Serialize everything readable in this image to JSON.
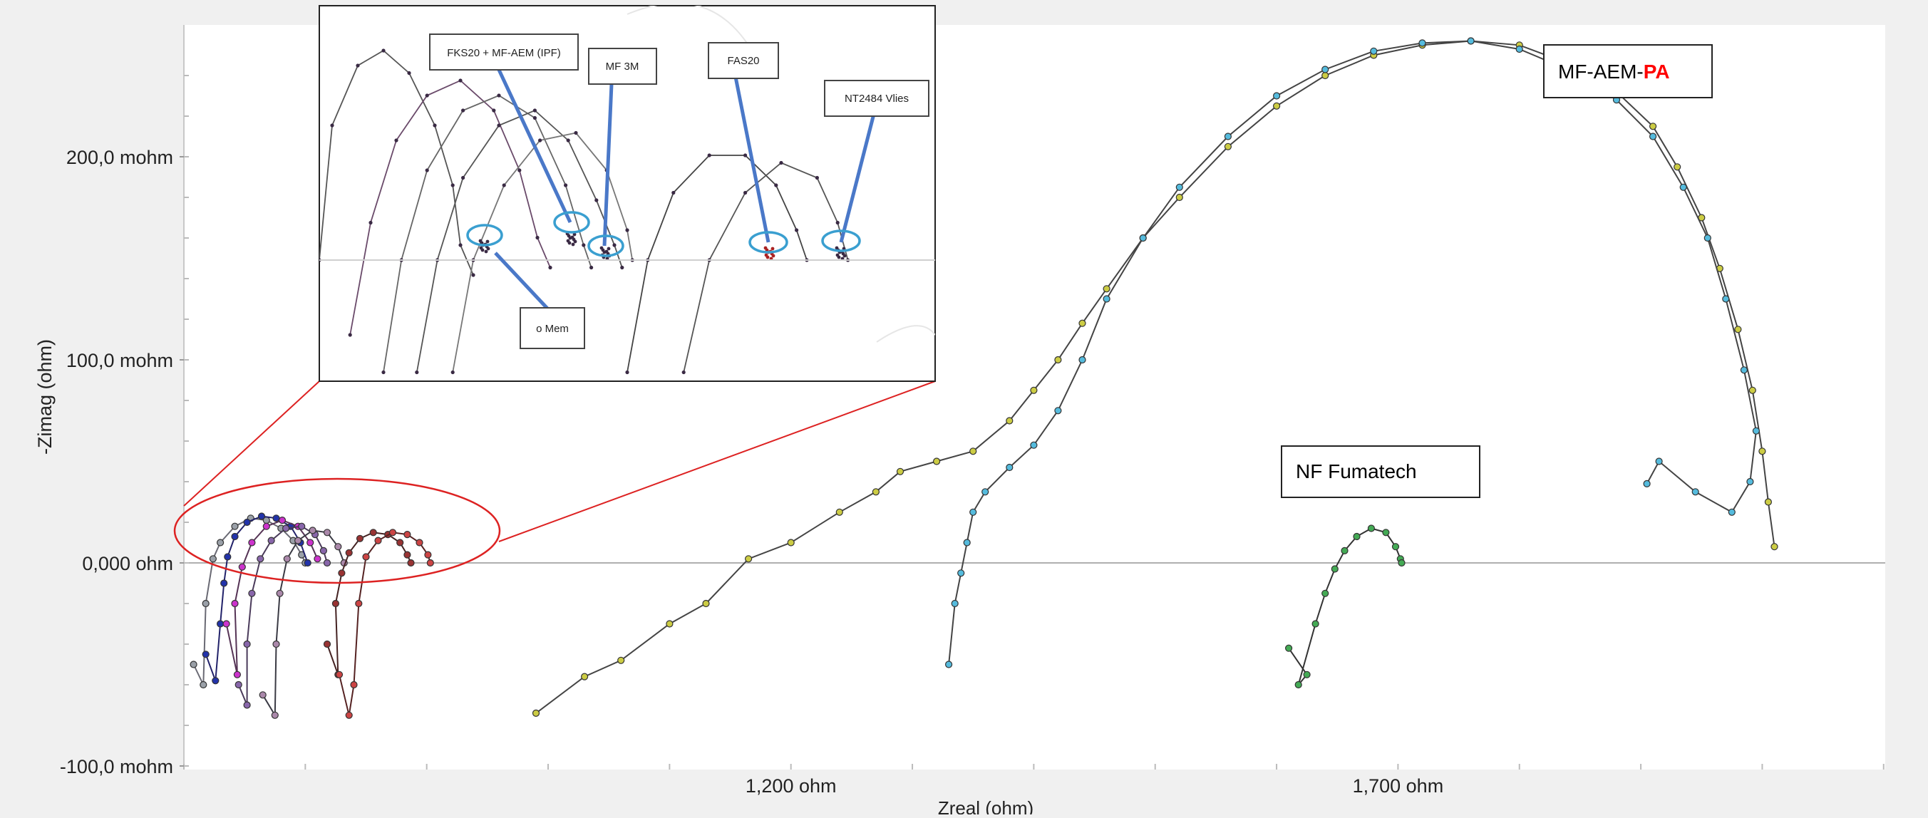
{
  "chart_data": {
    "type": "scatter",
    "xlabel": "Zreal (ohm)",
    "ylabel": "-Zimag (ohm)",
    "xlim": [
      700,
      2100
    ],
    "ylim": [
      -0.1,
      0.26
    ],
    "x_ticks": [
      {
        "v": 1200,
        "label": "1,200 ohm"
      },
      {
        "v": 1700,
        "label": "1,700 ohm"
      }
    ],
    "y_ticks": [
      {
        "v": 0.2,
        "label": "200,0 mohm"
      },
      {
        "v": 0.1,
        "label": "100,0 mohm"
      },
      {
        "v": 0.0,
        "label": "0,000 ohm"
      },
      {
        "v": -0.1,
        "label": "-100,0 mohm"
      }
    ],
    "annotations": [
      {
        "text_parts": [
          {
            "text": "MF-AEM-",
            "color": "#000000",
            "bold": false
          },
          {
            "text": "PA",
            "color": "#ff0000",
            "bold": true
          }
        ]
      },
      {
        "text_parts": [
          {
            "text": "NF Fumatech",
            "color": "#000000",
            "bold": false
          }
        ]
      }
    ],
    "series": [
      {
        "color": "#9aa0a8",
        "line": "#6a6a74",
        "points": [
          [
            708,
            -0.05
          ],
          [
            716,
            -0.06
          ],
          [
            718,
            -0.02
          ],
          [
            724,
            0.002
          ],
          [
            730,
            0.01
          ],
          [
            742,
            0.018
          ],
          [
            755,
            0.022
          ],
          [
            768,
            0.021
          ],
          [
            780,
            0.017
          ],
          [
            790,
            0.011
          ],
          [
            797,
            0.004
          ],
          [
            800,
            0.0
          ]
        ]
      },
      {
        "color": "#2233aa",
        "line": "#22226a",
        "points": [
          [
            718,
            -0.045
          ],
          [
            726,
            -0.058
          ],
          [
            730,
            -0.03
          ],
          [
            733,
            -0.01
          ],
          [
            736,
            0.003
          ],
          [
            742,
            0.013
          ],
          [
            752,
            0.02
          ],
          [
            764,
            0.023
          ],
          [
            776,
            0.022
          ],
          [
            788,
            0.018
          ],
          [
            796,
            0.01
          ],
          [
            802,
            0.0
          ]
        ]
      },
      {
        "color": "#cc33cc",
        "line": "#553355",
        "points": [
          [
            735,
            -0.03
          ],
          [
            744,
            -0.055
          ],
          [
            742,
            -0.02
          ],
          [
            748,
            -0.002
          ],
          [
            756,
            0.01
          ],
          [
            768,
            0.018
          ],
          [
            781,
            0.021
          ],
          [
            794,
            0.018
          ],
          [
            804,
            0.01
          ],
          [
            810,
            0.002
          ]
        ]
      },
      {
        "color": "#8866aa",
        "line": "#4a3a5a",
        "points": [
          [
            745,
            -0.06
          ],
          [
            752,
            -0.07
          ],
          [
            752,
            -0.04
          ],
          [
            756,
            -0.015
          ],
          [
            763,
            0.002
          ],
          [
            772,
            0.011
          ],
          [
            784,
            0.017
          ],
          [
            797,
            0.018
          ],
          [
            808,
            0.014
          ],
          [
            815,
            0.006
          ],
          [
            818,
            0.0
          ]
        ]
      },
      {
        "color": "#aa88aa",
        "line": "#3a3a44",
        "points": [
          [
            765,
            -0.065
          ],
          [
            775,
            -0.075
          ],
          [
            776,
            -0.04
          ],
          [
            779,
            -0.015
          ],
          [
            785,
            0.002
          ],
          [
            794,
            0.011
          ],
          [
            806,
            0.016
          ],
          [
            818,
            0.015
          ],
          [
            827,
            0.008
          ],
          [
            832,
            0.0
          ]
        ]
      },
      {
        "color": "#993333",
        "line": "#442222",
        "points": [
          [
            818,
            -0.04
          ],
          [
            827,
            -0.055
          ],
          [
            825,
            -0.02
          ],
          [
            830,
            -0.005
          ],
          [
            836,
            0.005
          ],
          [
            845,
            0.012
          ],
          [
            856,
            0.015
          ],
          [
            868,
            0.014
          ],
          [
            878,
            0.01
          ],
          [
            884,
            0.004
          ],
          [
            887,
            0.0
          ]
        ]
      },
      {
        "color": "#cc4444",
        "line": "#552222",
        "points": [
          [
            828,
            -0.055
          ],
          [
            836,
            -0.075
          ],
          [
            840,
            -0.06
          ],
          [
            844,
            -0.02
          ],
          [
            850,
            0.003
          ],
          [
            860,
            0.011
          ],
          [
            872,
            0.015
          ],
          [
            884,
            0.014
          ],
          [
            894,
            0.01
          ],
          [
            901,
            0.004
          ],
          [
            903,
            0.0
          ]
        ]
      },
      {
        "color": "#cccc44",
        "line": "#444444",
        "points": [
          [
            990,
            -0.074
          ],
          [
            1030,
            -0.056
          ],
          [
            1060,
            -0.048
          ],
          [
            1100,
            -0.03
          ],
          [
            1130,
            -0.02
          ],
          [
            1165,
            0.002
          ],
          [
            1200,
            0.01
          ],
          [
            1240,
            0.025
          ],
          [
            1270,
            0.035
          ],
          [
            1290,
            0.045
          ],
          [
            1320,
            0.05
          ],
          [
            1350,
            0.055
          ],
          [
            1380,
            0.07
          ],
          [
            1400,
            0.085
          ],
          [
            1420,
            0.1
          ],
          [
            1440,
            0.118
          ],
          [
            1460,
            0.135
          ],
          [
            1490,
            0.16
          ],
          [
            1520,
            0.18
          ],
          [
            1560,
            0.205
          ],
          [
            1600,
            0.225
          ],
          [
            1640,
            0.24
          ],
          [
            1680,
            0.25
          ],
          [
            1720,
            0.255
          ],
          [
            1760,
            0.257
          ],
          [
            1800,
            0.255
          ],
          [
            1840,
            0.246
          ],
          [
            1880,
            0.232
          ],
          [
            1910,
            0.215
          ],
          [
            1930,
            0.195
          ],
          [
            1950,
            0.17
          ],
          [
            1965,
            0.145
          ],
          [
            1980,
            0.115
          ],
          [
            1992,
            0.085
          ],
          [
            2000,
            0.055
          ],
          [
            2005,
            0.03
          ],
          [
            2010,
            0.008
          ]
        ]
      },
      {
        "color": "#55bbdd",
        "line": "#444444",
        "points": [
          [
            1330,
            -0.05
          ],
          [
            1335,
            -0.02
          ],
          [
            1340,
            -0.005
          ],
          [
            1345,
            0.01
          ],
          [
            1350,
            0.025
          ],
          [
            1360,
            0.035
          ],
          [
            1380,
            0.047
          ],
          [
            1400,
            0.058
          ],
          [
            1420,
            0.075
          ],
          [
            1440,
            0.1
          ],
          [
            1460,
            0.13
          ],
          [
            1490,
            0.16
          ],
          [
            1520,
            0.185
          ],
          [
            1560,
            0.21
          ],
          [
            1600,
            0.23
          ],
          [
            1640,
            0.243
          ],
          [
            1680,
            0.252
          ],
          [
            1720,
            0.256
          ],
          [
            1760,
            0.257
          ],
          [
            1800,
            0.253
          ],
          [
            1840,
            0.243
          ],
          [
            1880,
            0.228
          ],
          [
            1910,
            0.21
          ],
          [
            1935,
            0.185
          ],
          [
            1955,
            0.16
          ],
          [
            1970,
            0.13
          ],
          [
            1985,
            0.095
          ],
          [
            1995,
            0.065
          ],
          [
            1990,
            0.04
          ],
          [
            1975,
            0.025
          ],
          [
            1945,
            0.035
          ],
          [
            1915,
            0.05
          ],
          [
            1905,
            0.039
          ]
        ]
      },
      {
        "color": "#44aa55",
        "line": "#333333",
        "points": [
          [
            1610,
            -0.042
          ],
          [
            1625,
            -0.055
          ],
          [
            1618,
            -0.06
          ],
          [
            1632,
            -0.03
          ],
          [
            1640,
            -0.015
          ],
          [
            1648,
            -0.003
          ],
          [
            1656,
            0.006
          ],
          [
            1666,
            0.013
          ],
          [
            1678,
            0.017
          ],
          [
            1690,
            0.015
          ],
          [
            1698,
            0.008
          ],
          [
            1702,
            0.002
          ],
          [
            1703,
            0.0
          ]
        ]
      }
    ],
    "inset_labels": [
      "FKS20 + MF-AEM (IPF)",
      "MF 3M",
      "FAS20",
      "NT2484 Vlies",
      "o Mem"
    ]
  }
}
